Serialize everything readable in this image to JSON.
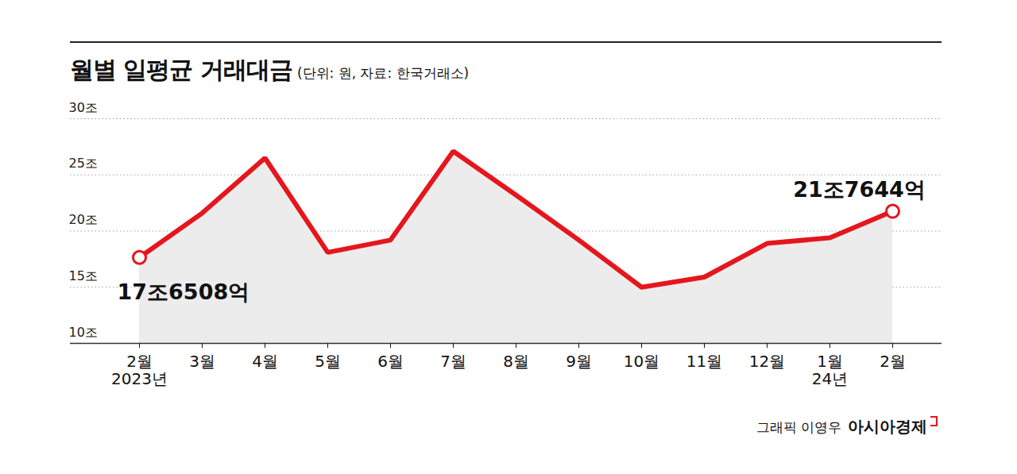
{
  "chart_data": {
    "type": "line",
    "title": "월별 일평균 거래대금",
    "subtitle": "(단위: 원, 자료: 한국거래소)",
    "caption": "그래픽 이영우",
    "publisher": "아시아경제",
    "categories": [
      "2월\n2023년",
      "3월",
      "4월",
      "5월",
      "6월",
      "7월",
      "8월",
      "9월",
      "10월",
      "11월",
      "12월",
      "1월\n24년",
      "2월"
    ],
    "values": [
      17.6508,
      21.6,
      26.5,
      18.1,
      19.2,
      27.1,
      23.2,
      19.2,
      15.0,
      15.9,
      18.9,
      19.4,
      21.7644
    ],
    "value_labels": [
      "17조6508억",
      null,
      null,
      null,
      null,
      null,
      null,
      null,
      null,
      null,
      null,
      null,
      "21조7644억"
    ],
    "data_labels": true,
    "marker": "circle",
    "color": "#e5161d",
    "ylim": [
      10,
      30
    ],
    "yticks": [
      {
        "value": 10,
        "label": "10조"
      },
      {
        "value": 15,
        "label": "15조"
      },
      {
        "value": 20,
        "label": "20조"
      },
      {
        "value": 25,
        "label": "25조"
      },
      {
        "value": 30,
        "label": "30조"
      }
    ],
    "grid": true
  }
}
